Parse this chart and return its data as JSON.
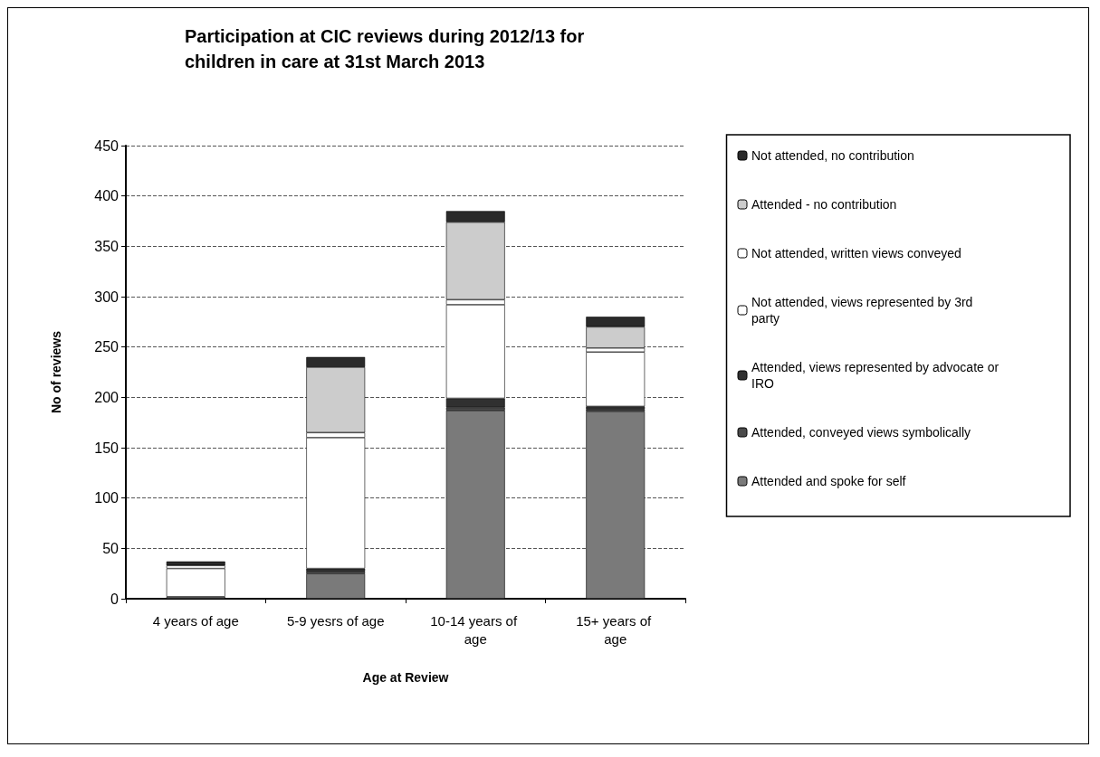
{
  "chart_data": {
    "type": "bar",
    "title": "Participation at CIC reviews during 2012/13 for children in care at 31st March 2013",
    "xlabel": "Age at Review",
    "ylabel": "No of reviews",
    "categories": [
      "4 years of age",
      "5-9 yesrs of age",
      "10-14 years of age",
      "15+ years of age"
    ],
    "stacked": true,
    "ylim": [
      0,
      450
    ],
    "yticks": [
      0,
      50,
      100,
      150,
      200,
      250,
      300,
      350,
      400,
      450
    ],
    "grid": "y",
    "legend": "right",
    "series": [
      {
        "name": "Attended and spoke for self",
        "color": "#7a7a7a",
        "values": [
          2,
          25,
          187,
          186
        ]
      },
      {
        "name": "Attended, conveyed views symbolically",
        "color": "#4a4a4a",
        "values": [
          0,
          2,
          3,
          2
        ]
      },
      {
        "name": "Attended, views represented by advocate or IRO",
        "color": "#303030",
        "values": [
          0,
          3,
          9,
          3
        ]
      },
      {
        "name": "Not attended, views represented by 3rd party",
        "color": "#ffffff",
        "values": [
          28,
          130,
          93,
          54
        ]
      },
      {
        "name": "Not attended, written views conveyed",
        "color": "#ffffff",
        "values": [
          3,
          5,
          5,
          4
        ]
      },
      {
        "name": "Attended - no contribution",
        "color": "#cccccc",
        "values": [
          0,
          65,
          77,
          21
        ]
      },
      {
        "name": "Not attended, no contribution",
        "color": "#2a2a2a",
        "values": [
          4,
          10,
          11,
          10
        ]
      }
    ]
  }
}
